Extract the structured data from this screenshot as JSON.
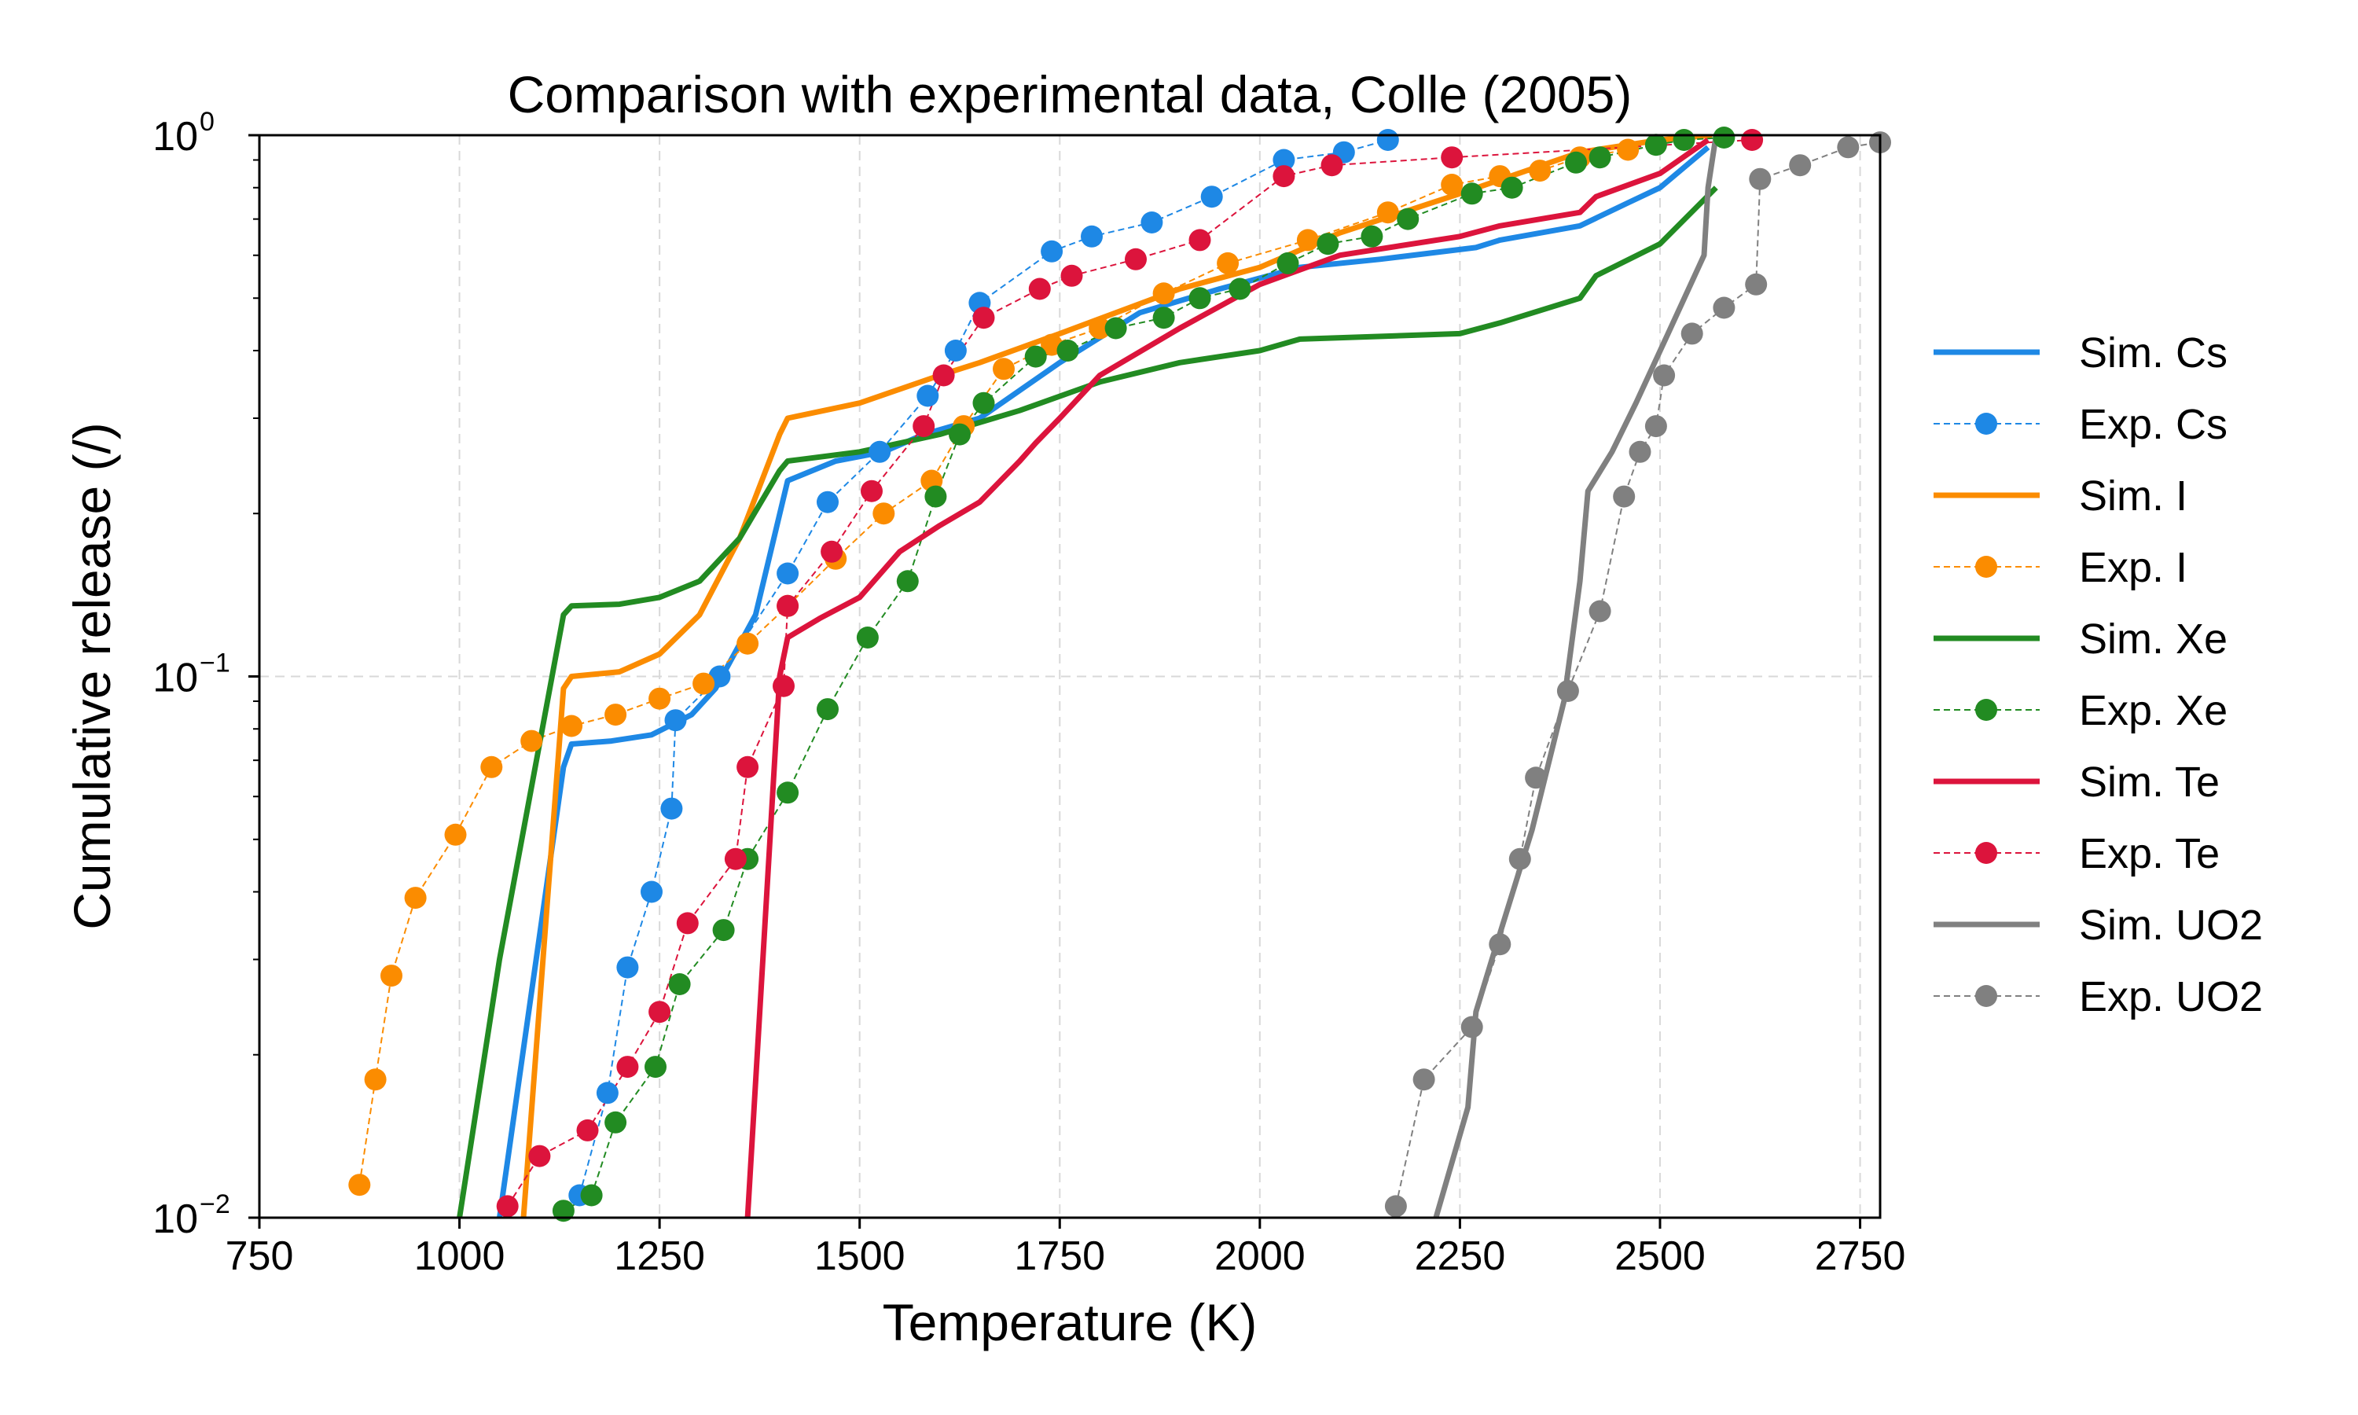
{
  "chart_data": {
    "type": "line",
    "title": "Comparison with experimental data, Colle (2005)",
    "xlabel": "Temperature (K)",
    "ylabel": "Cumulative release (/)",
    "xlim": [
      750,
      2775
    ],
    "ylim": [
      0.01,
      1
    ],
    "yscale": "log",
    "grid": true,
    "legend_position": "outside-right",
    "x_ticks": [
      750,
      1000,
      1250,
      1500,
      1750,
      2000,
      2250,
      2500,
      2750
    ],
    "x_tick_labels": [
      "750",
      "1000",
      "1250",
      "1500",
      "1750",
      "2000",
      "2250",
      "2500",
      "2750"
    ],
    "y_ticks": [
      {
        "value": 1,
        "base": "10",
        "exp": "0"
      },
      {
        "value": 0.1,
        "base": "10",
        "exp": "−1"
      },
      {
        "value": 0.01,
        "base": "10",
        "exp": "−2"
      }
    ],
    "series": [
      {
        "name": "Sim. Cs",
        "kind": "sim",
        "color": "#1e88e5",
        "x": [
          1050,
          1130,
          1140,
          1190,
          1240,
          1290,
          1320,
          1370,
          1410,
          1470,
          1530,
          1580,
          1650,
          1750,
          1850,
          1950,
          2050,
          2150,
          2270,
          2300,
          2400,
          2460,
          2500,
          2560
        ],
        "y": [
          0.01,
          0.068,
          0.075,
          0.076,
          0.078,
          0.085,
          0.095,
          0.13,
          0.23,
          0.25,
          0.26,
          0.28,
          0.3,
          0.38,
          0.47,
          0.52,
          0.57,
          0.59,
          0.62,
          0.64,
          0.68,
          0.75,
          0.8,
          0.95
        ]
      },
      {
        "name": "Exp. Cs",
        "kind": "exp",
        "color": "#1e88e5",
        "x": [
          1150,
          1185,
          1210,
          1240,
          1265,
          1270,
          1325,
          1410,
          1460,
          1525,
          1585,
          1620,
          1650,
          1740,
          1790,
          1865,
          1940,
          2030,
          2105,
          2160
        ],
        "y": [
          0.011,
          0.017,
          0.029,
          0.04,
          0.057,
          0.083,
          0.1,
          0.155,
          0.21,
          0.26,
          0.33,
          0.4,
          0.49,
          0.61,
          0.65,
          0.69,
          0.77,
          0.9,
          0.93,
          0.98
        ]
      },
      {
        "name": "Sim. I",
        "kind": "sim",
        "color": "#fb8c00",
        "x": [
          1080,
          1130,
          1140,
          1200,
          1250,
          1300,
          1350,
          1400,
          1410,
          1500,
          1600,
          1650,
          1750,
          1900,
          2000,
          2100,
          2250,
          2400,
          2500,
          2565
        ],
        "y": [
          0.01,
          0.095,
          0.1,
          0.102,
          0.11,
          0.13,
          0.18,
          0.28,
          0.3,
          0.32,
          0.36,
          0.38,
          0.43,
          0.52,
          0.57,
          0.66,
          0.78,
          0.93,
          0.98,
          1.0
        ]
      },
      {
        "name": "Exp. I",
        "kind": "exp",
        "color": "#fb8c00",
        "x": [
          875,
          895,
          915,
          945,
          995,
          1040,
          1090,
          1140,
          1195,
          1250,
          1305,
          1360,
          1410,
          1470,
          1530,
          1590,
          1630,
          1680,
          1740,
          1800,
          1880,
          1960,
          2060,
          2160,
          2240,
          2300,
          2350,
          2400,
          2460
        ],
        "y": [
          0.0115,
          0.018,
          0.028,
          0.039,
          0.051,
          0.068,
          0.076,
          0.081,
          0.085,
          0.091,
          0.097,
          0.115,
          0.135,
          0.165,
          0.2,
          0.23,
          0.29,
          0.37,
          0.41,
          0.44,
          0.51,
          0.58,
          0.64,
          0.72,
          0.81,
          0.84,
          0.86,
          0.91,
          0.94
        ]
      },
      {
        "name": "Sim. Xe",
        "kind": "sim",
        "color": "#228b22",
        "x": [
          1000,
          1050,
          1130,
          1140,
          1200,
          1250,
          1300,
          1350,
          1400,
          1410,
          1500,
          1600,
          1700,
          1800,
          1900,
          2000,
          2050,
          2250,
          2300,
          2400,
          2420,
          2500,
          2570
        ],
        "y": [
          0.01,
          0.03,
          0.13,
          0.135,
          0.136,
          0.14,
          0.15,
          0.18,
          0.24,
          0.25,
          0.26,
          0.28,
          0.31,
          0.35,
          0.38,
          0.4,
          0.42,
          0.43,
          0.45,
          0.5,
          0.55,
          0.63,
          0.8
        ]
      },
      {
        "name": "Exp. Xe",
        "kind": "exp",
        "color": "#228b22",
        "x": [
          1130,
          1165,
          1195,
          1245,
          1275,
          1330,
          1360,
          1410,
          1460,
          1510,
          1560,
          1595,
          1625,
          1655,
          1720,
          1760,
          1820,
          1880,
          1925,
          1975,
          2035,
          2085,
          2140,
          2185,
          2265,
          2315,
          2395,
          2425,
          2495,
          2530,
          2580
        ],
        "y": [
          0.0103,
          0.011,
          0.015,
          0.019,
          0.027,
          0.034,
          0.046,
          0.061,
          0.087,
          0.118,
          0.15,
          0.215,
          0.28,
          0.32,
          0.39,
          0.4,
          0.44,
          0.46,
          0.5,
          0.52,
          0.58,
          0.63,
          0.65,
          0.7,
          0.78,
          0.8,
          0.89,
          0.91,
          0.96,
          0.98,
          0.99
        ]
      },
      {
        "name": "Sim. Te",
        "kind": "sim",
        "color": "#dc143c",
        "x": [
          1360,
          1400,
          1410,
          1450,
          1500,
          1550,
          1600,
          1650,
          1700,
          1720,
          1750,
          1800,
          1900,
          2000,
          2100,
          2250,
          2300,
          2400,
          2420,
          2500,
          2560
        ],
        "y": [
          0.01,
          0.1,
          0.118,
          0.128,
          0.14,
          0.17,
          0.19,
          0.21,
          0.25,
          0.27,
          0.3,
          0.36,
          0.44,
          0.53,
          0.6,
          0.65,
          0.68,
          0.72,
          0.77,
          0.85,
          0.98
        ]
      },
      {
        "name": "Exp. Te",
        "kind": "exp",
        "color": "#dc143c",
        "x": [
          1060,
          1100,
          1160,
          1210,
          1250,
          1285,
          1345,
          1360,
          1405,
          1410,
          1465,
          1515,
          1580,
          1605,
          1655,
          1725,
          1765,
          1845,
          1925,
          2030,
          2090,
          2240,
          2615
        ],
        "y": [
          0.0105,
          0.013,
          0.0145,
          0.019,
          0.024,
          0.035,
          0.046,
          0.068,
          0.096,
          0.135,
          0.17,
          0.22,
          0.29,
          0.36,
          0.46,
          0.52,
          0.55,
          0.59,
          0.64,
          0.84,
          0.88,
          0.91,
          0.98
        ]
      },
      {
        "name": "Sim. UO2",
        "kind": "sim",
        "color": "#808080",
        "x": [
          2220,
          2260,
          2270,
          2290,
          2340,
          2380,
          2400,
          2410,
          2440,
          2470,
          2510,
          2555,
          2560,
          2570
        ],
        "y": [
          0.01,
          0.016,
          0.024,
          0.03,
          0.052,
          0.09,
          0.15,
          0.22,
          0.26,
          0.32,
          0.43,
          0.6,
          0.8,
          1.0
        ]
      },
      {
        "name": "Exp. UO2",
        "kind": "exp",
        "color": "#808080",
        "x": [
          2170,
          2205,
          2265,
          2300,
          2325,
          2345,
          2385,
          2425,
          2455,
          2475,
          2495,
          2505,
          2540,
          2580,
          2620,
          2625,
          2675,
          2735,
          2775
        ],
        "y": [
          0.0105,
          0.018,
          0.0225,
          0.032,
          0.046,
          0.065,
          0.094,
          0.132,
          0.215,
          0.26,
          0.29,
          0.36,
          0.43,
          0.48,
          0.53,
          0.83,
          0.88,
          0.95,
          0.97
        ]
      }
    ]
  }
}
